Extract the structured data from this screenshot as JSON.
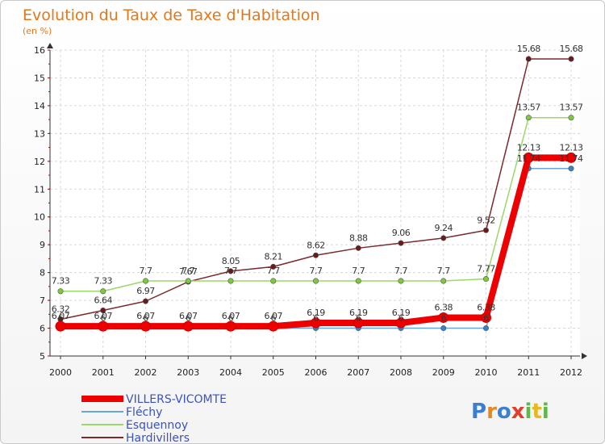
{
  "chart_data": {
    "type": "line",
    "title": "Evolution du Taux de Taxe d'Habitation",
    "subtitle": "(en %)",
    "xlabel": "",
    "ylabel": "(en %)",
    "ylim": [
      5,
      16
    ],
    "yticks": [
      "5",
      "6",
      "7",
      "8",
      "9",
      "10",
      "11",
      "12",
      "13",
      "14",
      "15",
      "16"
    ],
    "categories": [
      "2000",
      "2001",
      "2002",
      "2003",
      "2004",
      "2005",
      "2006",
      "2007",
      "2008",
      "2009",
      "2010",
      "2011",
      "2012"
    ],
    "grid": true,
    "legend_position": "bottom-left",
    "series": [
      {
        "name": "Hardivillers",
        "color": "#7a2a2a",
        "marker": "#6a1a1a",
        "values": [
          6.32,
          6.64,
          6.97,
          7.67,
          8.05,
          8.21,
          8.62,
          8.88,
          9.06,
          9.24,
          9.52,
          15.68,
          15.68
        ],
        "labels": [
          "6.32",
          "6.64",
          "6.97",
          "7.67",
          "8.05",
          "8.21",
          "8.62",
          "8.88",
          "9.06",
          "9.24",
          "9.52",
          "15.68",
          "15.68"
        ]
      },
      {
        "name": "Esquennoy",
        "color": "#9ad86a",
        "marker": "#7ccc3a",
        "values": [
          7.33,
          7.33,
          7.7,
          7.7,
          7.7,
          7.7,
          7.7,
          7.7,
          7.7,
          7.7,
          7.77,
          13.57,
          13.57
        ],
        "labels": [
          "7.33",
          "7.33",
          "7.7",
          "7.7",
          "7.7",
          "7.7",
          "7.7",
          "7.7",
          "7.7",
          "7.7",
          "7.77",
          "13.57",
          "13.57"
        ]
      },
      {
        "name": "Fléchy",
        "color": "#6aa6d8",
        "marker": "#3b82c4",
        "values": [
          6,
          6,
          6,
          6,
          6,
          6,
          6,
          6,
          6,
          6,
          6,
          11.74,
          11.74
        ],
        "labels": [
          "6",
          "6",
          "6",
          "6",
          "6",
          "6",
          "6",
          "6",
          "6",
          "6",
          "6",
          "11.74",
          "11.74"
        ]
      },
      {
        "name": "VILLERS-VICOMTE",
        "color": "#ee0000",
        "marker": "#ee0000",
        "values": [
          6.07,
          6.07,
          6.07,
          6.07,
          6.07,
          6.07,
          6.19,
          6.19,
          6.19,
          6.38,
          6.38,
          12.13,
          12.13
        ],
        "labels": [
          "6.07",
          "6.07",
          "6.07",
          "6.07",
          "6.07",
          "6.07",
          "6.19",
          "6.19",
          "6.19",
          "6.38",
          "6.38",
          "12.13",
          "12.13"
        ]
      }
    ]
  },
  "legend": [
    {
      "label": "VILLERS-VICOMTE",
      "color": "#ee0000",
      "thick": true
    },
    {
      "label": "Fléchy",
      "color": "#6aa6d8",
      "thick": false
    },
    {
      "label": "Esquennoy",
      "color": "#9ad86a",
      "thick": false
    },
    {
      "label": "Hardivillers",
      "color": "#7a2a2a",
      "thick": false
    }
  ],
  "logo": {
    "letters": [
      "P",
      "r",
      "o",
      "x",
      "i",
      "t",
      "i"
    ],
    "colors": [
      "#3a7fd0",
      "#e8871e",
      "#3a7fd0",
      "#e63a2a",
      "#5cb848",
      "#e8b81e",
      "#5cb848"
    ]
  }
}
